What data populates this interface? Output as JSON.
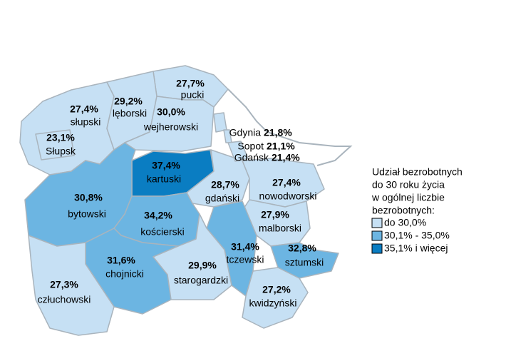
{
  "map": {
    "regions": [
      {
        "name": "pucki",
        "value": 27.7,
        "value_label": "27,7%",
        "color": "#c6e0f4"
      },
      {
        "name": "słupski",
        "value": 27.4,
        "value_label": "27,4%",
        "color": "#c6e0f4"
      },
      {
        "name": "lęborski",
        "value": 29.2,
        "value_label": "29,2%",
        "color": "#c6e0f4"
      },
      {
        "name": "wejherowski",
        "value": 30.0,
        "value_label": "30,0%",
        "color": "#c6e0f4"
      },
      {
        "name": "Słupsk",
        "value": 23.1,
        "value_label": "23,1%",
        "color": "#c6e0f4"
      },
      {
        "name": "kartuski",
        "value": 37.4,
        "value_label": "37,4%",
        "color": "#0a7dc2"
      },
      {
        "name": "bytowski",
        "value": 30.8,
        "value_label": "30,8%",
        "color": "#6cb5e2"
      },
      {
        "name": "gdański",
        "value": 28.7,
        "value_label": "28,7%",
        "color": "#c6e0f4"
      },
      {
        "name": "nowodworski",
        "value": 27.4,
        "value_label": "27,4%",
        "color": "#c6e0f4"
      },
      {
        "name": "kościerski",
        "value": 34.2,
        "value_label": "34,2%",
        "color": "#6cb5e2"
      },
      {
        "name": "malborski",
        "value": 27.9,
        "value_label": "27,9%",
        "color": "#c6e0f4"
      },
      {
        "name": "tczewski",
        "value": 31.4,
        "value_label": "31,4%",
        "color": "#6cb5e2"
      },
      {
        "name": "sztumski",
        "value": 32.8,
        "value_label": "32,8%",
        "color": "#6cb5e2"
      },
      {
        "name": "chojnicki",
        "value": 31.6,
        "value_label": "31,6%",
        "color": "#6cb5e2"
      },
      {
        "name": "starogardzki",
        "value": 29.9,
        "value_label": "29,9%",
        "color": "#c6e0f4"
      },
      {
        "name": "człuchowski",
        "value": 27.3,
        "value_label": "27,3%",
        "color": "#c6e0f4"
      },
      {
        "name": "kwidzyński",
        "value": 27.2,
        "value_label": "27,2%",
        "color": "#c6e0f4"
      },
      {
        "name": "Gdynia",
        "value": 21.8,
        "value_label": "21,8%",
        "color": "#c6e0f4"
      },
      {
        "name": "Sopot",
        "value": 21.1,
        "value_label": "21,1%",
        "color": "#c6e0f4"
      },
      {
        "name": "Gdańsk",
        "value": 21.4,
        "value_label": "21,4%",
        "color": "#c6e0f4"
      }
    ],
    "legend": {
      "title_lines": [
        "Udział bezrobotnych",
        "do 30 roku życia",
        "w ogólnej liczbie",
        " bezrobotnych:"
      ],
      "items": [
        {
          "label": "do 30,0%",
          "color": "#c6e0f4"
        },
        {
          "label": "30,1% - 35,0%",
          "color": "#6cb5e2"
        },
        {
          "label": "35,1% i więcej",
          "color": "#0a7dc2"
        }
      ]
    }
  }
}
